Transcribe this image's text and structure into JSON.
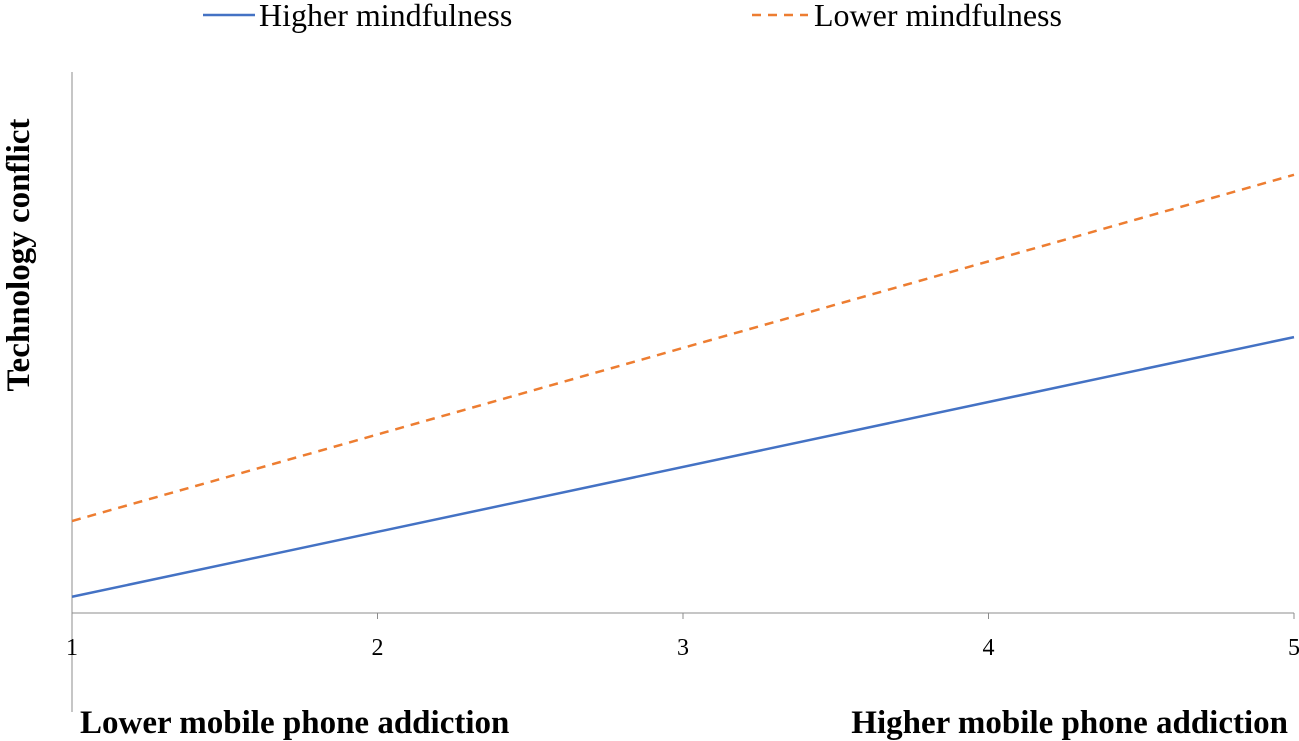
{
  "chart_data": {
    "type": "line",
    "title": "",
    "ylabel": "Technology conflict",
    "xlabel_left": "Lower mobile phone addiction",
    "xlabel_right": "Higher mobile phone addiction",
    "x": [
      1,
      2,
      3,
      4,
      5
    ],
    "x_ticks": [
      "1",
      "2",
      "3",
      "4",
      "5"
    ],
    "xlim": [
      1,
      5
    ],
    "ylim": [
      0,
      10
    ],
    "y_ticks_shown": false,
    "grid": false,
    "legend_position": "top",
    "series": [
      {
        "name": "Higher mindfulness",
        "style": "solid",
        "color": "#4472C4",
        "x": [
          1,
          5
        ],
        "values": [
          0.3,
          5.1
        ]
      },
      {
        "name": "Lower mindfulness",
        "style": "dashed",
        "color": "#ED7D31",
        "x": [
          1,
          5
        ],
        "values": [
          1.7,
          8.1
        ]
      }
    ]
  }
}
